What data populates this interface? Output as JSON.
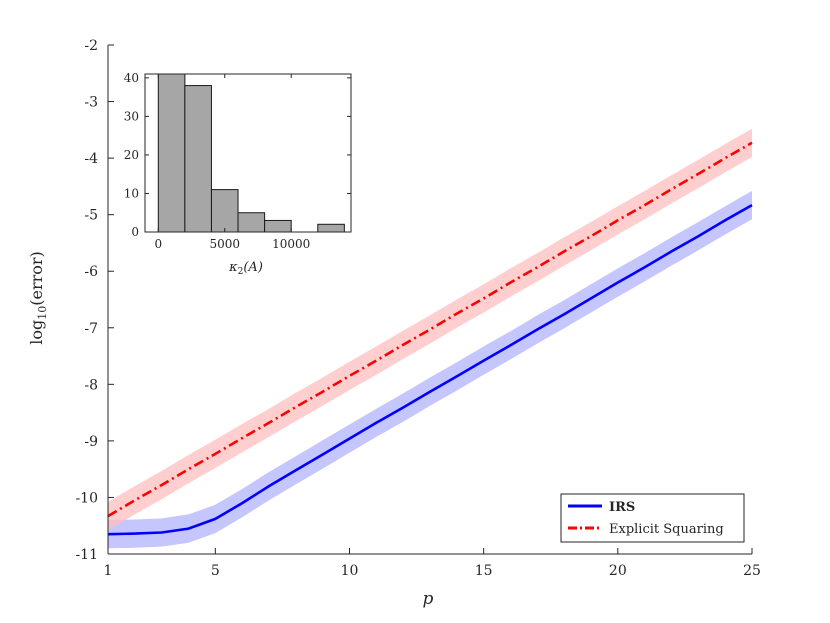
{
  "chart_data": [
    {
      "type": "line",
      "xlabel": "p",
      "ylabel_base": "log",
      "ylabel_sub": "10",
      "ylabel_arg": "(error)",
      "xlim": [
        1,
        25
      ],
      "ylim": [
        -11,
        -2
      ],
      "xticks": [
        1,
        5,
        10,
        15,
        20,
        25
      ],
      "yticks": [
        -11,
        -10,
        -9,
        -8,
        -7,
        -6,
        -5,
        -4,
        -3,
        -2
      ],
      "grid": false,
      "legend_position": "bottom-right",
      "x": [
        1,
        2,
        3,
        4,
        5,
        6,
        7,
        8,
        9,
        10,
        11,
        12,
        13,
        14,
        15,
        16,
        17,
        18,
        19,
        20,
        21,
        22,
        23,
        24,
        25
      ],
      "series": [
        {
          "name": "IRS",
          "color": "#0000ff",
          "band_color": "#b3b3ff",
          "style": "solid",
          "values": [
            -10.65,
            -10.64,
            -10.62,
            -10.55,
            -10.38,
            -10.1,
            -9.8,
            -9.52,
            -9.24,
            -8.96,
            -8.68,
            -8.41,
            -8.13,
            -7.86,
            -7.58,
            -7.31,
            -7.03,
            -6.76,
            -6.48,
            -6.2,
            -5.93,
            -5.65,
            -5.38,
            -5.1,
            -4.83
          ],
          "band_halfwidth": 0.25
        },
        {
          "name": "Explicit Squaring",
          "color": "#ff0000",
          "band_color": "#ffbdbd",
          "style": "dash-dot",
          "values": [
            -10.33,
            -10.05,
            -9.78,
            -9.5,
            -9.23,
            -8.95,
            -8.68,
            -8.4,
            -8.13,
            -7.85,
            -7.58,
            -7.3,
            -7.03,
            -6.75,
            -6.48,
            -6.2,
            -5.93,
            -5.65,
            -5.38,
            -5.1,
            -4.83,
            -4.55,
            -4.28,
            -4.0,
            -3.73
          ],
          "band_halfwidth": 0.25
        }
      ]
    },
    {
      "type": "bar",
      "xlabel": "κ2(A)",
      "xlabel_main": "κ",
      "xlabel_sub": "2",
      "xlabel_arg": "(A)",
      "bin_edges": [
        0,
        2000,
        4000,
        6000,
        8000,
        10000,
        12000,
        14000
      ],
      "values": [
        41,
        38,
        11,
        5,
        3,
        0,
        2
      ],
      "xlim": [
        -1000,
        14500
      ],
      "ylim": [
        0,
        41
      ],
      "xticks": [
        0,
        5000,
        10000
      ],
      "yticks": [
        0,
        10,
        20,
        30,
        40
      ],
      "bar_color": "#a6a6a6"
    }
  ]
}
